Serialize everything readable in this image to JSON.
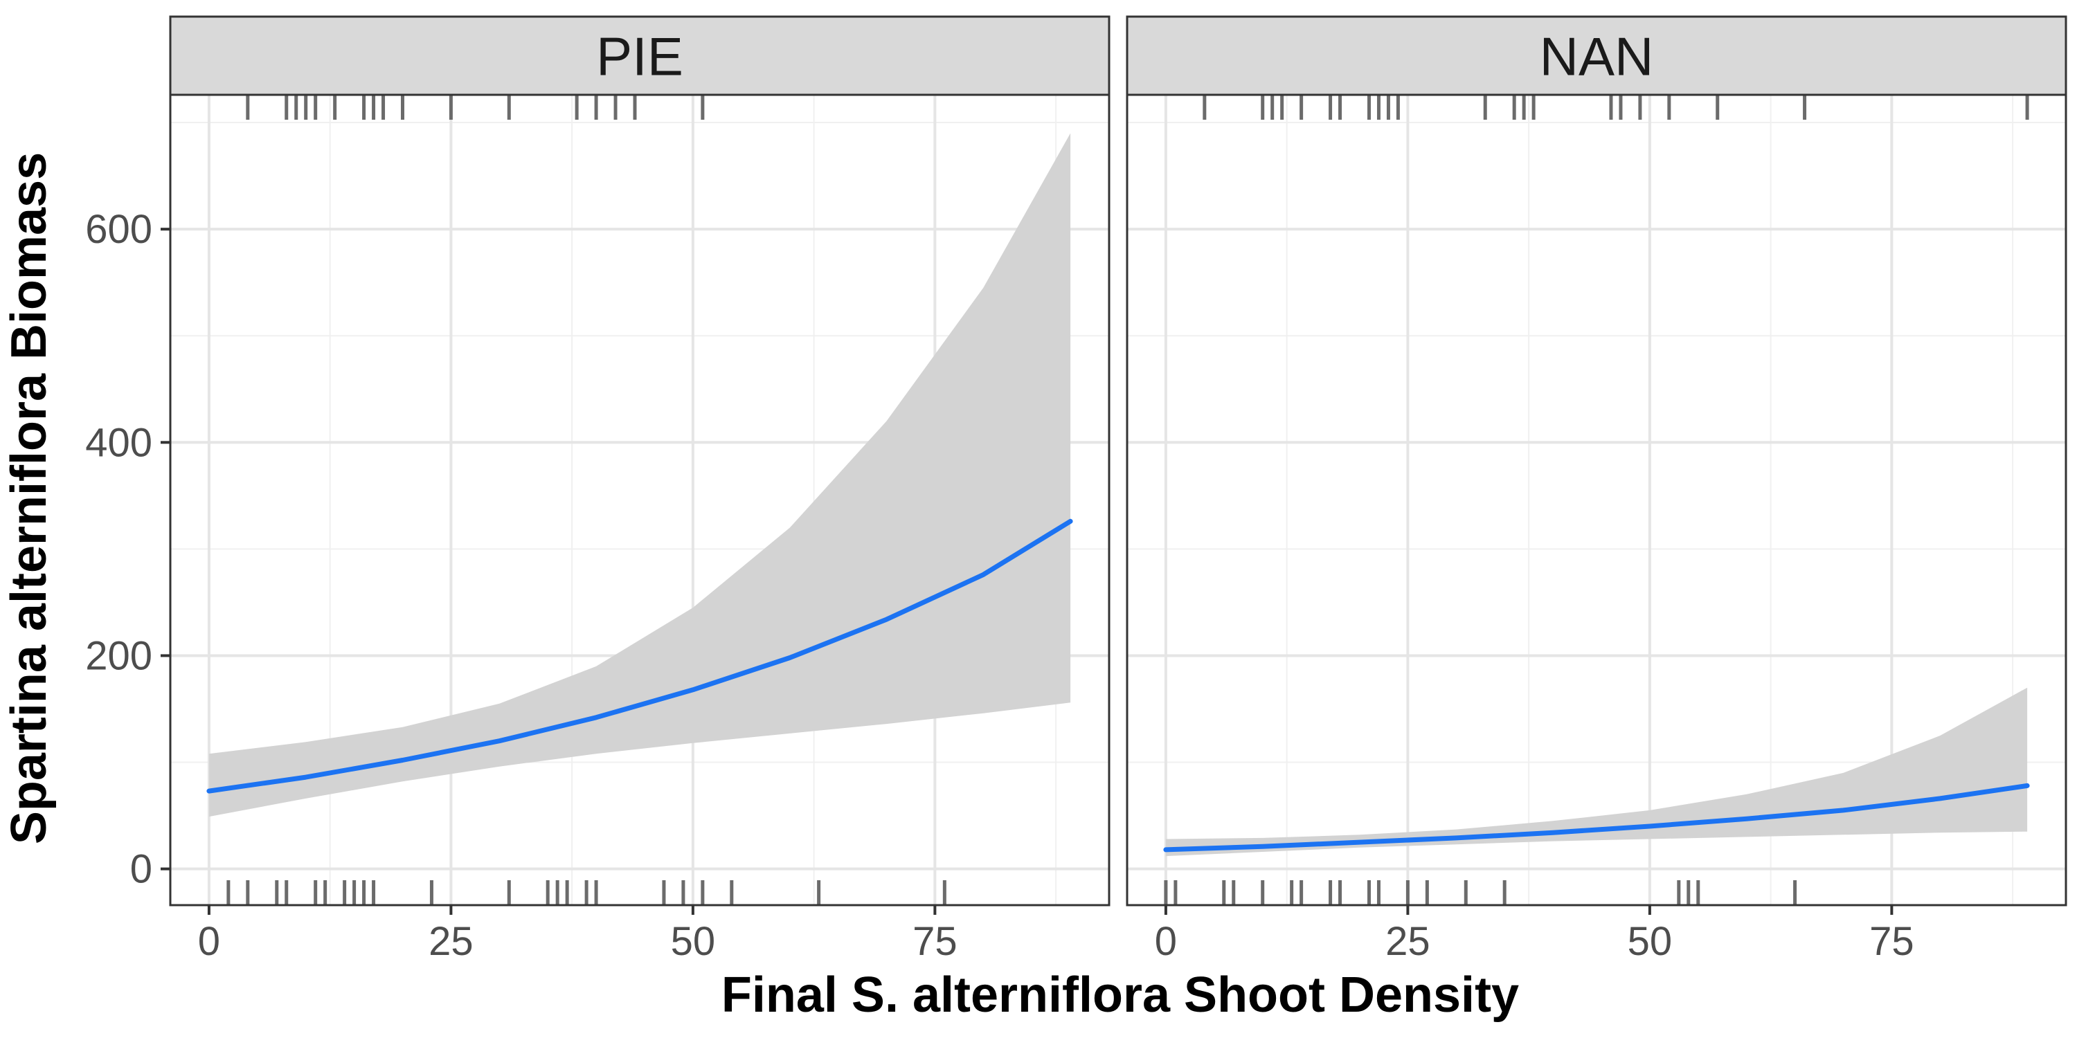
{
  "chart_data": {
    "type": "line",
    "xlabel": "Final S. alterniflora Shoot Density",
    "ylabel": "Spartina alterniflora Biomass",
    "xlim": [
      -4,
      93
    ],
    "ylim": [
      -34,
      726
    ],
    "x_ticks": [
      0,
      25,
      50,
      75
    ],
    "x_tick_labels": [
      "0",
      "25",
      "50",
      "75"
    ],
    "y_ticks": [
      0,
      200,
      400,
      600
    ],
    "y_tick_labels": [
      "0",
      "200",
      "400",
      "600"
    ],
    "grid": true,
    "line_color": "#1c73f2",
    "ribbon_color": "#d3d3d3",
    "panels": [
      {
        "label": "PIE",
        "fit": {
          "x": [
            0,
            10,
            20,
            30,
            40,
            50,
            60,
            70,
            80,
            89
          ],
          "y": [
            73,
            86,
            102,
            120,
            142,
            168,
            198,
            234,
            276,
            326
          ]
        },
        "ribbon": {
          "x": [
            0,
            10,
            20,
            30,
            40,
            50,
            60,
            70,
            80,
            89
          ],
          "lower": [
            49,
            66,
            82,
            96,
            108,
            118,
            127,
            136,
            146,
            156
          ],
          "upper": [
            108,
            119,
            133,
            155,
            190,
            245,
            320,
            420,
            545,
            690
          ]
        },
        "rug_top": [
          4,
          8,
          9,
          10,
          11,
          13,
          16,
          17,
          18,
          20,
          25,
          31,
          38,
          40,
          42,
          44,
          51
        ],
        "rug_bottom": [
          2,
          4,
          7,
          8,
          11,
          12,
          14,
          15,
          16,
          17,
          23,
          31,
          35,
          36,
          37,
          39,
          40,
          47,
          49,
          51,
          54,
          63,
          76
        ]
      },
      {
        "label": "NAN",
        "fit": {
          "x": [
            0,
            10,
            20,
            30,
            40,
            50,
            60,
            70,
            80,
            89
          ],
          "y": [
            18,
            21,
            25,
            29,
            34,
            40,
            47,
            55,
            66,
            78
          ]
        },
        "ribbon": {
          "x": [
            0,
            10,
            20,
            30,
            40,
            50,
            60,
            70,
            80,
            89
          ],
          "lower": [
            12,
            16,
            20,
            23,
            26,
            28,
            30,
            32,
            34,
            35
          ],
          "upper": [
            28,
            29,
            32,
            37,
            45,
            55,
            70,
            90,
            125,
            170
          ]
        },
        "rug_top": [
          4,
          10,
          11,
          12,
          14,
          17,
          18,
          21,
          22,
          23,
          24,
          33,
          36,
          37,
          38,
          46,
          47,
          49,
          52,
          57,
          66,
          89
        ],
        "rug_bottom": [
          0,
          1,
          6,
          7,
          10,
          13,
          14,
          17,
          18,
          21,
          22,
          25,
          27,
          31,
          35,
          53,
          54,
          55,
          65
        ]
      }
    ]
  }
}
